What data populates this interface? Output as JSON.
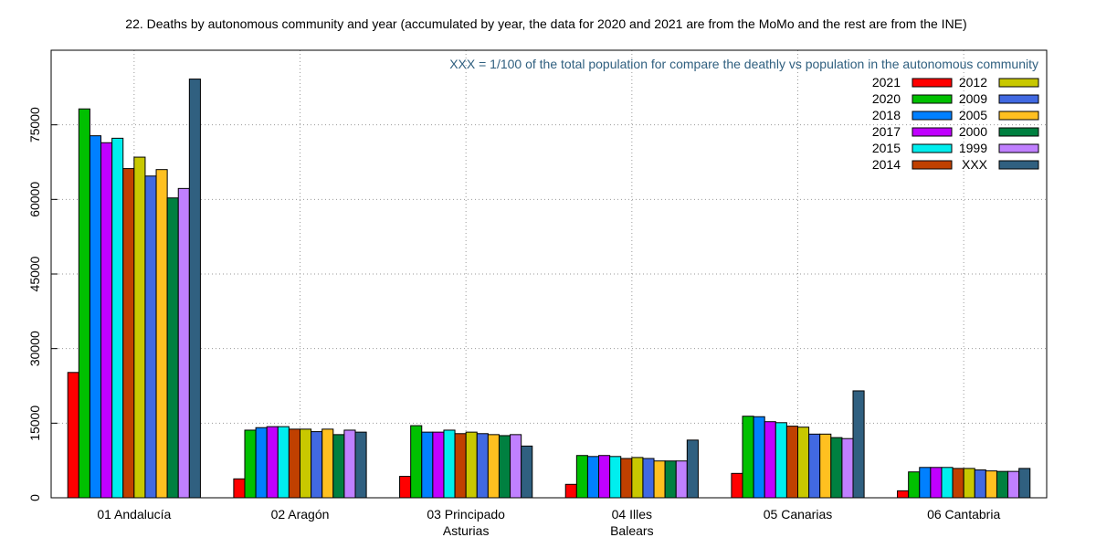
{
  "chart_data": {
    "type": "bar",
    "title": "22. Deaths by autonomous community and year (accumulated by year, the data for 2020 and 2021 are from the MoMo and the rest are from the INE)",
    "note": "XXX = 1/100 of the total population for compare the deathly vs population in the autonomous community",
    "ylim": [
      0,
      90000
    ],
    "yticks": [
      0,
      15000,
      30000,
      45000,
      60000,
      75000
    ],
    "grid": true,
    "legend_position": "top-right",
    "categories": [
      [
        "01 Andalucía"
      ],
      [
        "02 Aragón"
      ],
      [
        "03 Principado",
        "Asturias"
      ],
      [
        "04 Illes",
        "Balears"
      ],
      [
        "05 Canarias"
      ],
      [
        "06 Cantabria"
      ]
    ],
    "series": [
      {
        "name": "2021",
        "color": "#ff0000",
        "values": [
          25200,
          3800,
          4300,
          2700,
          4900,
          1400
        ]
      },
      {
        "name": "2020",
        "color": "#00c000",
        "values": [
          78200,
          13600,
          14500,
          8500,
          16400,
          5200
        ]
      },
      {
        "name": "2018",
        "color": "#0080ff",
        "values": [
          72800,
          14100,
          13200,
          8300,
          16300,
          6100
        ]
      },
      {
        "name": "2017",
        "color": "#c000ff",
        "values": [
          71400,
          14300,
          13200,
          8500,
          15300,
          6100
        ]
      },
      {
        "name": "2015",
        "color": "#00eeee",
        "values": [
          72300,
          14300,
          13600,
          8300,
          15100,
          6100
        ]
      },
      {
        "name": "2014",
        "color": "#c04000",
        "values": [
          66200,
          13800,
          12900,
          7900,
          14400,
          5900
        ]
      },
      {
        "name": "2012",
        "color": "#c8c800",
        "values": [
          68500,
          13800,
          13200,
          8100,
          14200,
          5900
        ]
      },
      {
        "name": "2009",
        "color": "#4169e1",
        "values": [
          64700,
          13300,
          12900,
          7900,
          12800,
          5600
        ]
      },
      {
        "name": "2005",
        "color": "#ffc020",
        "values": [
          66000,
          13800,
          12700,
          7400,
          12800,
          5400
        ]
      },
      {
        "name": "2000",
        "color": "#008040",
        "values": [
          60300,
          12700,
          12500,
          7400,
          12100,
          5300
        ]
      },
      {
        "name": "1999",
        "color": "#c080ff",
        "values": [
          62200,
          13600,
          12700,
          7400,
          11900,
          5300
        ]
      },
      {
        "name": "XXX",
        "color": "#306080",
        "values": [
          84200,
          13200,
          10400,
          11600,
          21500,
          5900
        ]
      }
    ],
    "legend_columns": [
      [
        "2021",
        "2020",
        "2018",
        "2017",
        "2015",
        "2014"
      ],
      [
        "2012",
        "2009",
        "2005",
        "2000",
        "1999",
        "XXX"
      ]
    ]
  }
}
